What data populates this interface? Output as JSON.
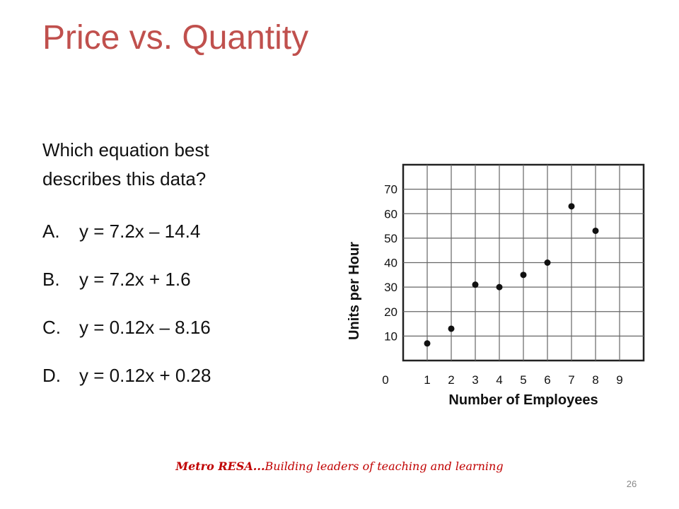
{
  "slide": {
    "title": "Price vs. Quantity",
    "question": "Which equation best describes this data?",
    "options": [
      {
        "letter": "A.",
        "text": "y = 7.2x – 14.4"
      },
      {
        "letter": "B.",
        "text": "y = 7.2x + 1.6"
      },
      {
        "letter": "C.",
        "text": "y = 0.12x – 8.16"
      },
      {
        "letter": "D.",
        "text": "y = 0.12x + 0.28"
      }
    ],
    "footer_brand": "Metro RESA...",
    "footer_tagline": "Building leaders of teaching and learning",
    "page_number": "26",
    "colors": {
      "title": "#c0504d",
      "footer": "#c00000",
      "grid": "#666666",
      "point": "#111111"
    }
  },
  "chart_data": {
    "type": "scatter",
    "xlabel": "Number of Employees",
    "ylabel": "Units per Hour",
    "xlim": [
      0,
      10
    ],
    "ylim": [
      0,
      80
    ],
    "x_ticks": [
      1,
      2,
      3,
      4,
      5,
      6,
      7,
      8,
      9
    ],
    "y_ticks": [
      10,
      20,
      30,
      40,
      50,
      60,
      70
    ],
    "origin_label": "0",
    "grid": true,
    "points": [
      {
        "x": 1,
        "y": 7
      },
      {
        "x": 2,
        "y": 13
      },
      {
        "x": 3,
        "y": 31
      },
      {
        "x": 4,
        "y": 30
      },
      {
        "x": 5,
        "y": 35
      },
      {
        "x": 6,
        "y": 40
      },
      {
        "x": 7,
        "y": 63
      },
      {
        "x": 8,
        "y": 53
      }
    ]
  }
}
